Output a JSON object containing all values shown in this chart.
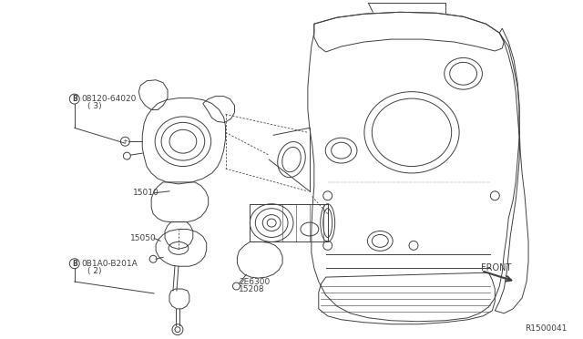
{
  "background_color": "#ffffff",
  "line_color": "#404040",
  "figure_width": 6.4,
  "figure_height": 3.72,
  "dpi": 100,
  "ref_number": "R1500041",
  "labels": {
    "part1": "08120-64020",
    "part1_qty": "( 3)",
    "part2": "15010",
    "part3": "15050",
    "part4": "0B1A0-B201A",
    "part4_qty": "( 2)",
    "part5": "2E6300",
    "part6": "15208",
    "front": "FRONT"
  },
  "label_B": "B"
}
